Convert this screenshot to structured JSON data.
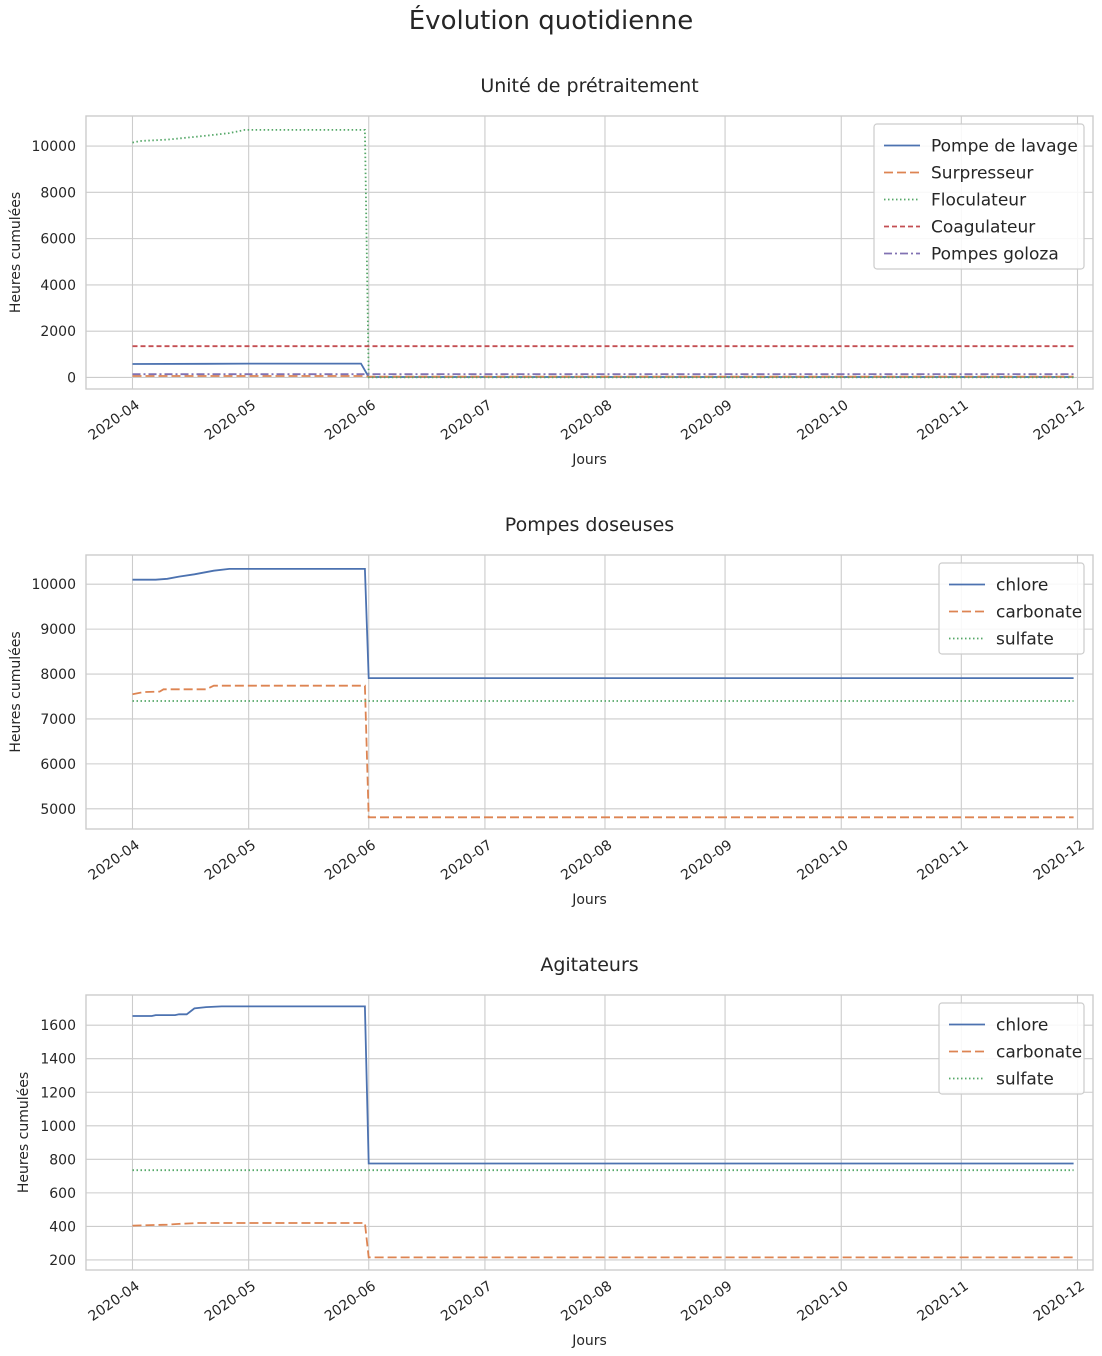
{
  "suptitle": "Évolution quotidienne",
  "chart_data": [
    {
      "type": "line",
      "title": "Unité de prétraitement",
      "xlabel": "Jours",
      "ylabel": "Heures cumulées",
      "x_type": "date",
      "xlim": [
        "2020-03-20",
        "2020-12-05"
      ],
      "xticks": [
        "2020-04-01",
        "2020-05-01",
        "2020-06-01",
        "2020-07-01",
        "2020-08-01",
        "2020-09-01",
        "2020-10-01",
        "2020-11-01",
        "2020-12-01"
      ],
      "xtick_labels": [
        "2020-04",
        "2020-05",
        "2020-06",
        "2020-07",
        "2020-08",
        "2020-09",
        "2020-10",
        "2020-11",
        "2020-12"
      ],
      "ylim": [
        -500,
        11300
      ],
      "yticks": [
        0,
        2000,
        4000,
        6000,
        8000,
        10000
      ],
      "grid": true,
      "legend_position": "top-right",
      "series": [
        {
          "name": "Pompe de lavage",
          "color": "#4c72b0",
          "dash": "solid",
          "points": [
            [
              "2020-04-01",
              580
            ],
            [
              "2020-04-20",
              590
            ],
            [
              "2020-05-01",
              600
            ],
            [
              "2020-05-30",
              600
            ],
            [
              "2020-06-01",
              20
            ],
            [
              "2020-11-30",
              20
            ]
          ]
        },
        {
          "name": "Surpresseur",
          "color": "#dd8452",
          "dash": "dashed",
          "points": [
            [
              "2020-04-01",
              60
            ],
            [
              "2020-05-31",
              60
            ],
            [
              "2020-06-01",
              30
            ],
            [
              "2020-11-30",
              30
            ]
          ]
        },
        {
          "name": "Floculateur",
          "color": "#55a868",
          "dash": "dotted",
          "points": [
            [
              "2020-04-01",
              10150
            ],
            [
              "2020-04-03",
              10220
            ],
            [
              "2020-04-10",
              10280
            ],
            [
              "2020-04-16",
              10380
            ],
            [
              "2020-04-20",
              10450
            ],
            [
              "2020-04-26",
              10560
            ],
            [
              "2020-04-30",
              10700
            ],
            [
              "2020-05-31",
              10700
            ],
            [
              "2020-06-01",
              0
            ],
            [
              "2020-11-30",
              0
            ]
          ]
        },
        {
          "name": "Coagulateur",
          "color": "#c44e52",
          "dash": "dashdense",
          "points": [
            [
              "2020-04-01",
              1350
            ],
            [
              "2020-11-30",
              1350
            ]
          ]
        },
        {
          "name": "Pompes goloza",
          "color": "#8172b3",
          "dash": "dashdot",
          "points": [
            [
              "2020-04-01",
              140
            ],
            [
              "2020-11-30",
              140
            ]
          ]
        }
      ]
    },
    {
      "type": "line",
      "title": "Pompes doseuses",
      "xlabel": "Jours",
      "ylabel": "Heures cumulées",
      "x_type": "date",
      "xlim": [
        "2020-03-20",
        "2020-12-05"
      ],
      "xticks": [
        "2020-04-01",
        "2020-05-01",
        "2020-06-01",
        "2020-07-01",
        "2020-08-01",
        "2020-09-01",
        "2020-10-01",
        "2020-11-01",
        "2020-12-01"
      ],
      "xtick_labels": [
        "2020-04",
        "2020-05",
        "2020-06",
        "2020-07",
        "2020-08",
        "2020-09",
        "2020-10",
        "2020-11",
        "2020-12"
      ],
      "ylim": [
        4550,
        10650
      ],
      "yticks": [
        5000,
        6000,
        7000,
        8000,
        9000,
        10000
      ],
      "grid": true,
      "legend_position": "top-right",
      "series": [
        {
          "name": "chlore",
          "color": "#4c72b0",
          "dash": "solid",
          "points": [
            [
              "2020-04-01",
              10100
            ],
            [
              "2020-04-07",
              10100
            ],
            [
              "2020-04-10",
              10120
            ],
            [
              "2020-04-13",
              10170
            ],
            [
              "2020-04-17",
              10220
            ],
            [
              "2020-04-22",
              10300
            ],
            [
              "2020-04-26",
              10340
            ],
            [
              "2020-05-31",
              10340
            ],
            [
              "2020-06-01",
              7910
            ],
            [
              "2020-11-30",
              7910
            ]
          ]
        },
        {
          "name": "carbonate",
          "color": "#dd8452",
          "dash": "dashed",
          "points": [
            [
              "2020-04-01",
              7550
            ],
            [
              "2020-04-04",
              7600
            ],
            [
              "2020-04-08",
              7610
            ],
            [
              "2020-04-09",
              7660
            ],
            [
              "2020-04-20",
              7660
            ],
            [
              "2020-04-22",
              7740
            ],
            [
              "2020-05-31",
              7740
            ],
            [
              "2020-06-01",
              4810
            ],
            [
              "2020-11-30",
              4810
            ]
          ]
        },
        {
          "name": "sulfate",
          "color": "#55a868",
          "dash": "dotted",
          "points": [
            [
              "2020-04-01",
              7400
            ],
            [
              "2020-11-30",
              7400
            ]
          ]
        }
      ]
    },
    {
      "type": "line",
      "title": "Agitateurs",
      "xlabel": "Jours",
      "ylabel": "Heures cumulées",
      "x_type": "date",
      "xlim": [
        "2020-03-20",
        "2020-12-05"
      ],
      "xticks": [
        "2020-04-01",
        "2020-05-01",
        "2020-06-01",
        "2020-07-01",
        "2020-08-01",
        "2020-09-01",
        "2020-10-01",
        "2020-11-01",
        "2020-12-01"
      ],
      "xtick_labels": [
        "2020-04",
        "2020-05",
        "2020-06",
        "2020-07",
        "2020-08",
        "2020-09",
        "2020-10",
        "2020-11",
        "2020-12"
      ],
      "ylim": [
        140,
        1780
      ],
      "yticks": [
        200,
        400,
        600,
        800,
        1000,
        1200,
        1400,
        1600
      ],
      "grid": true,
      "legend_position": "top-right",
      "series": [
        {
          "name": "chlore",
          "color": "#4c72b0",
          "dash": "solid",
          "points": [
            [
              "2020-04-01",
              1655
            ],
            [
              "2020-04-06",
              1655
            ],
            [
              "2020-04-07",
              1660
            ],
            [
              "2020-04-12",
              1660
            ],
            [
              "2020-04-13",
              1665
            ],
            [
              "2020-04-15",
              1665
            ],
            [
              "2020-04-17",
              1700
            ],
            [
              "2020-04-20",
              1708
            ],
            [
              "2020-04-24",
              1712
            ],
            [
              "2020-05-31",
              1712
            ],
            [
              "2020-06-01",
              775
            ],
            [
              "2020-11-30",
              775
            ]
          ]
        },
        {
          "name": "carbonate",
          "color": "#dd8452",
          "dash": "dashed",
          "points": [
            [
              "2020-04-01",
              405
            ],
            [
              "2020-04-10",
              410
            ],
            [
              "2020-04-13",
              415
            ],
            [
              "2020-04-18",
              420
            ],
            [
              "2020-05-31",
              420
            ],
            [
              "2020-06-01",
              215
            ],
            [
              "2020-11-30",
              215
            ]
          ]
        },
        {
          "name": "sulfate",
          "color": "#55a868",
          "dash": "dotted",
          "points": [
            [
              "2020-04-01",
              735
            ],
            [
              "2020-11-30",
              735
            ]
          ]
        }
      ]
    }
  ]
}
